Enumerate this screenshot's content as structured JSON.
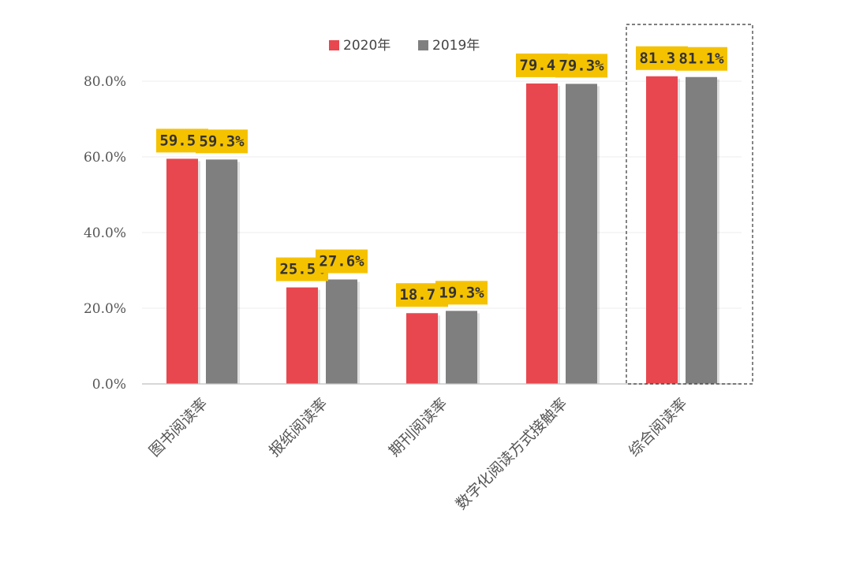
{
  "colors": {
    "series_2020": "#e8474f",
    "series_2019": "#7f7f7f",
    "label_bg": "#f5c200",
    "grid": "#eeeeee",
    "axis": "#bfbfbf",
    "highlight_box": "#333333"
  },
  "chart_data": {
    "type": "bar",
    "title": "",
    "xlabel": "",
    "ylabel": "",
    "ylim": [
      0,
      90
    ],
    "yticks": [
      "0.0%",
      "20.0%",
      "40.0%",
      "60.0%",
      "80.0%"
    ],
    "grid": true,
    "legend_position": "top",
    "categories": [
      "图书阅读率",
      "报纸阅读率",
      "期刊阅读率",
      "数字化阅读方式接触率",
      "综合阅读率"
    ],
    "series": [
      {
        "name": "2020年",
        "values": [
          59.5,
          25.5,
          18.7,
          79.4,
          81.3
        ],
        "labels": [
          "59.5%",
          "25.5%",
          "18.7%",
          "79.4%",
          "81.3%"
        ]
      },
      {
        "name": "2019年",
        "values": [
          59.3,
          27.6,
          19.3,
          79.3,
          81.1
        ],
        "labels": [
          "59.3%",
          "27.6%",
          "19.3%",
          "79.3%",
          "81.1%"
        ]
      }
    ],
    "highlighted_category": "综合阅读率"
  }
}
